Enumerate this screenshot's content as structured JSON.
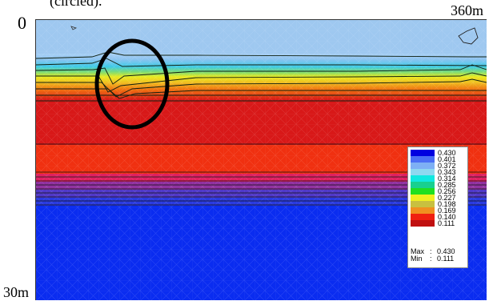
{
  "caption": "(circled).",
  "labels": {
    "top_left": "0",
    "top_right": "360m",
    "bottom_left": "30m"
  },
  "legend": {
    "entries": [
      {
        "value": "0.430",
        "color": "#0000e0"
      },
      {
        "value": "0.401",
        "color": "#4a6ef5"
      },
      {
        "value": "0.372",
        "color": "#7eb0f5"
      },
      {
        "value": "0.343",
        "color": "#8ed8f0"
      },
      {
        "value": "0.314",
        "color": "#10e8e0"
      },
      {
        "value": "0.285",
        "color": "#18d090"
      },
      {
        "value": "0.256",
        "color": "#20e020"
      },
      {
        "value": "0.227",
        "color": "#f0f020"
      },
      {
        "value": "0.198",
        "color": "#c8c040"
      },
      {
        "value": "0.169",
        "color": "#f09020"
      },
      {
        "value": "0.140",
        "color": "#f02010"
      },
      {
        "value": "0.111",
        "color": "#c01010"
      }
    ],
    "max_label": "Max",
    "max_value": "0.430",
    "min_label": "Min",
    "min_value": "0.111"
  },
  "colors": {
    "top_zone": "#8ec3f0",
    "red_zone": "#d81818",
    "red_zone_light": "#f03010",
    "blue_zone": "#0a2cf0",
    "circle": "#000000"
  }
}
